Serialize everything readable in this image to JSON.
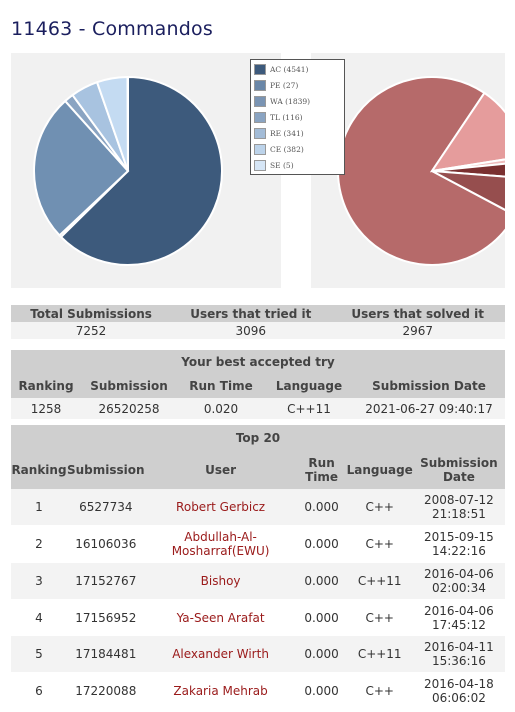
{
  "title": "11463 - Commandos",
  "legend": [
    {
      "label": "AC (4541)",
      "color": "#3d5a7c"
    },
    {
      "label": "PE (27)",
      "color": "#6a87a8"
    },
    {
      "label": "WA (1839)",
      "color": "#7a94b3"
    },
    {
      "label": "TL (116)",
      "color": "#8aa4c2"
    },
    {
      "label": "RE (341)",
      "color": "#a3bcd7"
    },
    {
      "label": "CE (382)",
      "color": "#bcd3ea"
    },
    {
      "label": "SE (5)",
      "color": "#d6e6f6"
    }
  ],
  "chart_data": [
    {
      "type": "pie",
      "slices": [
        {
          "label": "AC",
          "value": 4541,
          "color": "#3d5a7c"
        },
        {
          "label": "PE",
          "value": 27,
          "color": "#5f7fa3"
        },
        {
          "label": "WA",
          "value": 1839,
          "color": "#7090b2"
        },
        {
          "label": "TL",
          "value": 116,
          "color": "#8aa4c2"
        },
        {
          "label": "RE",
          "value": 341,
          "color": "#a8c3e0"
        },
        {
          "label": "CE",
          "value": 382,
          "color": "#c4dbf2"
        },
        {
          "label": "SE",
          "value": 5,
          "color": "#d6e6f6"
        }
      ]
    },
    {
      "type": "pie",
      "slices": [
        {
          "value": 82,
          "color": "#b66a6a"
        },
        {
          "value": 14,
          "color": "#e59c9c"
        },
        {
          "value": 1,
          "color": "#efbcbc"
        },
        {
          "value": 3,
          "color": "#7a3030"
        },
        {
          "value": 7,
          "color": "#964e4e"
        }
      ]
    }
  ],
  "stats": {
    "headers": [
      "Total Submissions",
      "Users that tried it",
      "Users that solved it"
    ],
    "values": [
      "7252",
      "3096",
      "2967"
    ]
  },
  "best": {
    "caption": "Your best accepted try",
    "headers": [
      "Ranking",
      "Submission",
      "Run Time",
      "Language",
      "Submission Date"
    ],
    "row": [
      "1258",
      "26520258",
      "0.020",
      "C++11",
      "2021-06-27 09:40:17"
    ]
  },
  "top": {
    "caption": "Top 20",
    "headers": {
      "ranking": "Ranking",
      "submission": "Submission",
      "user": "User",
      "runtime_1": "Run",
      "runtime_2": "Time",
      "language": "Language",
      "date_1": "Submission",
      "date_2": "Date"
    },
    "rows": [
      {
        "rank": "1",
        "submission": "6527734",
        "user_1": "Robert Gerbicz",
        "user_2": "",
        "runtime": "0.000",
        "language": "C++",
        "date": "2008-07-12",
        "time": "21:18:51"
      },
      {
        "rank": "2",
        "submission": "16106036",
        "user_1": "Abdullah-Al-",
        "user_2": "Mosharraf(EWU)",
        "runtime": "0.000",
        "language": "C++",
        "date": "2015-09-15",
        "time": "14:22:16"
      },
      {
        "rank": "3",
        "submission": "17152767",
        "user_1": "Bishoy",
        "user_2": "",
        "runtime": "0.000",
        "language": "C++11",
        "date": "2016-04-06",
        "time": "02:00:34"
      },
      {
        "rank": "4",
        "submission": "17156952",
        "user_1": "Ya-Seen Arafat",
        "user_2": "",
        "runtime": "0.000",
        "language": "C++",
        "date": "2016-04-06",
        "time": "17:45:12"
      },
      {
        "rank": "5",
        "submission": "17184481",
        "user_1": "Alexander Wirth",
        "user_2": "",
        "runtime": "0.000",
        "language": "C++11",
        "date": "2016-04-11",
        "time": "15:36:16"
      },
      {
        "rank": "6",
        "submission": "17220088",
        "user_1": "Zakaria Mehrab",
        "user_2": "",
        "runtime": "0.000",
        "language": "C++",
        "date": "2016-04-18",
        "time": "06:06:02"
      }
    ]
  }
}
